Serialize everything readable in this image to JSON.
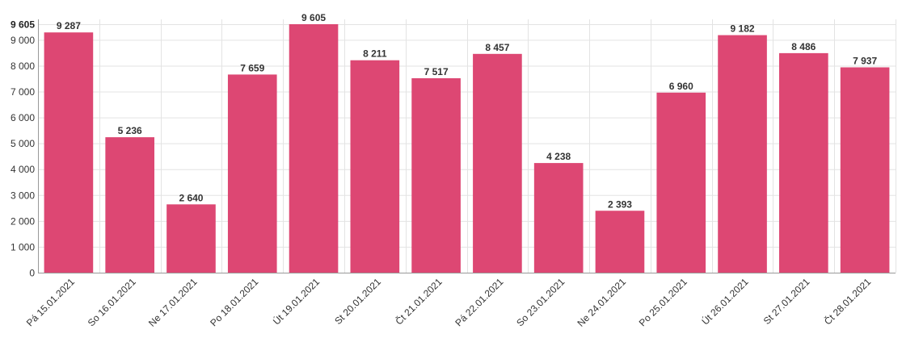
{
  "chart_data": {
    "type": "bar",
    "categories": [
      "Pá 15.01.2021",
      "So 16.01.2021",
      "Ne 17.01.2021",
      "Po 18.01.2021",
      "Út 19.01.2021",
      "St 20.01.2021",
      "Čt 21.01.2021",
      "Pá 22.01.2021",
      "So 23.01.2021",
      "Ne 24.01.2021",
      "Po 25.01.2021",
      "Út 26.01.2021",
      "St 27.01.2021",
      "Čt 28.01.2021"
    ],
    "values": [
      9287,
      5236,
      2640,
      7659,
      9605,
      8211,
      7517,
      8457,
      4238,
      2393,
      6960,
      9182,
      8486,
      7937
    ],
    "value_labels": [
      "9 287",
      "5 236",
      "2 640",
      "7 659",
      "9 605",
      "8 211",
      "7 517",
      "8 457",
      "4 238",
      "2 393",
      "6 960",
      "9 182",
      "8 486",
      "7 937"
    ],
    "yticks": [
      0,
      1000,
      2000,
      3000,
      4000,
      5000,
      6000,
      7000,
      8000,
      9000
    ],
    "ytick_labels": [
      "0",
      "1 000",
      "2 000",
      "3 000",
      "4 000",
      "5 000",
      "6 000",
      "7 000",
      "8 000",
      "9 000"
    ],
    "ymax": 9605,
    "ymax_label": "9 605",
    "ylim": [
      0,
      9605
    ],
    "title": "",
    "xlabel": "",
    "ylabel": "",
    "grid": true,
    "bar_color": "#dc4370"
  }
}
